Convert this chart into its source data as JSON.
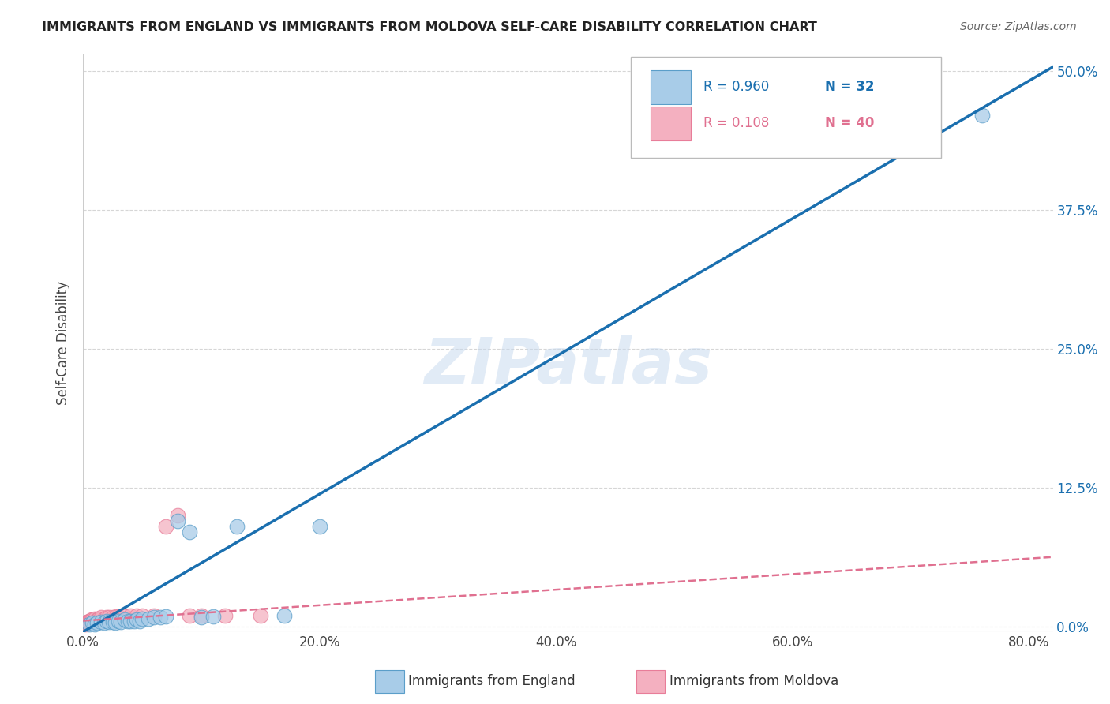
{
  "title": "IMMIGRANTS FROM ENGLAND VS IMMIGRANTS FROM MOLDOVA SELF-CARE DISABILITY CORRELATION CHART",
  "source": "Source: ZipAtlas.com",
  "ylabel": "Self-Care Disability",
  "x_tick_labels": [
    "0.0%",
    "20.0%",
    "40.0%",
    "60.0%",
    "80.0%"
  ],
  "y_tick_labels": [
    "0.0%",
    "12.5%",
    "25.0%",
    "37.5%",
    "50.0%"
  ],
  "x_lim": [
    0.0,
    0.82
  ],
  "y_lim": [
    -0.005,
    0.515
  ],
  "legend_entry1_r": "R = 0.960",
  "legend_entry1_n": "N = 32",
  "legend_entry2_r": "R = 0.108",
  "legend_entry2_n": "N = 40",
  "watermark": "ZIPatlas",
  "england_scatter_x": [
    0.005,
    0.008,
    0.01,
    0.012,
    0.015,
    0.018,
    0.02,
    0.022,
    0.025,
    0.027,
    0.03,
    0.032,
    0.035,
    0.038,
    0.04,
    0.043,
    0.045,
    0.048,
    0.05,
    0.055,
    0.06,
    0.065,
    0.07,
    0.08,
    0.09,
    0.1,
    0.11,
    0.13,
    0.17,
    0.2,
    0.7,
    0.76
  ],
  "england_scatter_y": [
    0.002,
    0.003,
    0.002,
    0.003,
    0.004,
    0.003,
    0.005,
    0.004,
    0.004,
    0.003,
    0.005,
    0.004,
    0.006,
    0.005,
    0.005,
    0.005,
    0.006,
    0.005,
    0.007,
    0.007,
    0.008,
    0.008,
    0.009,
    0.095,
    0.085,
    0.008,
    0.009,
    0.09,
    0.01,
    0.09,
    0.43,
    0.46
  ],
  "moldova_scatter_x": [
    0.002,
    0.002,
    0.003,
    0.003,
    0.004,
    0.004,
    0.005,
    0.005,
    0.005,
    0.006,
    0.006,
    0.007,
    0.007,
    0.008,
    0.008,
    0.009,
    0.01,
    0.01,
    0.012,
    0.013,
    0.015,
    0.015,
    0.018,
    0.02,
    0.02,
    0.022,
    0.025,
    0.028,
    0.03,
    0.035,
    0.04,
    0.045,
    0.05,
    0.06,
    0.07,
    0.08,
    0.09,
    0.1,
    0.12,
    0.15
  ],
  "moldova_scatter_y": [
    0.002,
    0.003,
    0.003,
    0.004,
    0.003,
    0.004,
    0.004,
    0.005,
    0.005,
    0.004,
    0.005,
    0.005,
    0.006,
    0.005,
    0.006,
    0.005,
    0.006,
    0.007,
    0.006,
    0.007,
    0.007,
    0.008,
    0.007,
    0.007,
    0.008,
    0.008,
    0.008,
    0.009,
    0.009,
    0.009,
    0.01,
    0.01,
    0.01,
    0.01,
    0.09,
    0.1,
    0.01,
    0.01,
    0.01,
    0.01
  ],
  "england_line_slope": 0.62,
  "england_line_intercept": -0.005,
  "moldova_line_slope": 0.07,
  "moldova_line_intercept": 0.005,
  "england_line_color": "#1a6faf",
  "moldova_line_color": "#e07090",
  "scatter_england_color": "#a8cce8",
  "scatter_moldova_color": "#f4b0c0",
  "scatter_england_edge": "#5b9ec9",
  "scatter_moldova_edge": "#e87d99",
  "background_color": "#ffffff",
  "grid_color": "#cccccc"
}
